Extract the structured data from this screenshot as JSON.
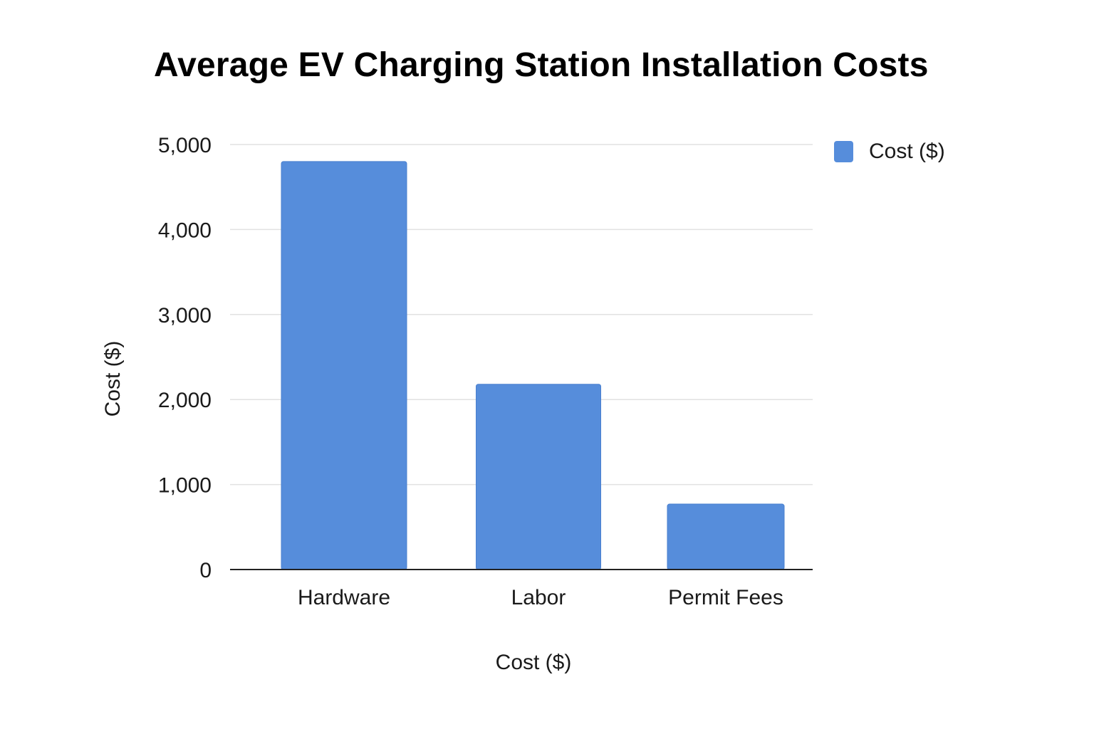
{
  "chart_data": {
    "type": "bar",
    "title": "Average EV Charging Station Installation Costs",
    "categories": [
      "Hardware",
      "Labor",
      "Permit Fees"
    ],
    "series": [
      {
        "name": "Cost ($)",
        "values": [
          4800,
          2180,
          770
        ]
      }
    ],
    "xlabel": "Cost ($)",
    "ylabel": "Cost ($)",
    "ylim": [
      0,
      5000
    ],
    "yticks": [
      0,
      1000,
      2000,
      3000,
      4000,
      5000
    ],
    "ytick_labels": [
      "0",
      "1,000",
      "2,000",
      "3,000",
      "4,000",
      "5,000"
    ],
    "grid": true,
    "legend_position": "top-right"
  },
  "colors": {
    "bar": "#568ddb",
    "grid": "#e2e2e2",
    "axis": "#222222",
    "text": "#1a1a1a"
  }
}
